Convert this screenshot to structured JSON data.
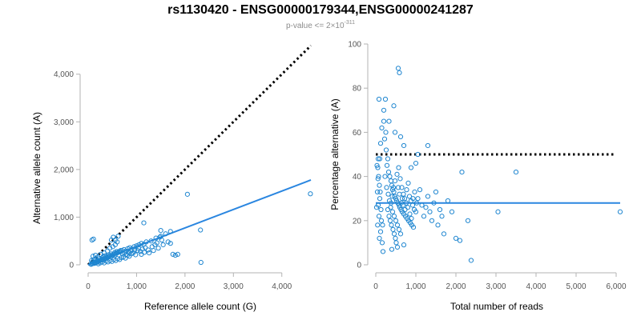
{
  "title": "rs1130420 - ENSG00000179344,ENSG00000241287",
  "subtitle": {
    "prefix": "p-value <= 2",
    "times": "×",
    "base": "10",
    "exponent": "-311"
  },
  "colors": {
    "points": "#1f86d0",
    "fit_line": "#2a86e0",
    "reference_line": "#000000",
    "axis": "#b3b3b3"
  },
  "chart_data": [
    {
      "type": "scatter",
      "xlabel": "Reference allele count (G)",
      "ylabel": "Alternative allele count (A)",
      "xlim": [
        0,
        4600
      ],
      "ylim": [
        0,
        4600
      ],
      "x_ticks": [
        {
          "value": 0,
          "label": "0"
        },
        {
          "value": 1000,
          "label": "1,000"
        },
        {
          "value": 2000,
          "label": "2,000"
        },
        {
          "value": 3000,
          "label": "3,000"
        },
        {
          "value": 4000,
          "label": "4,000"
        }
      ],
      "y_ticks": [
        {
          "value": 0,
          "label": "0"
        },
        {
          "value": 1000,
          "label": "1,000"
        },
        {
          "value": 2000,
          "label": "2,000"
        },
        {
          "value": 3000,
          "label": "3,000"
        },
        {
          "value": 4000,
          "label": "4,000"
        }
      ],
      "grid": false,
      "reference_line": {
        "style": "dotted",
        "x": [
          0,
          4600
        ],
        "y": [
          0,
          4600
        ]
      },
      "fit_line": {
        "style": "solid",
        "x": [
          0,
          4600
        ],
        "y": [
          0,
          1780
        ]
      },
      "points": [
        {
          "x": 60,
          "y": 10
        },
        {
          "x": 80,
          "y": 20
        },
        {
          "x": 100,
          "y": 30
        },
        {
          "x": 120,
          "y": 40
        },
        {
          "x": 140,
          "y": 50
        },
        {
          "x": 160,
          "y": 40
        },
        {
          "x": 180,
          "y": 70
        },
        {
          "x": 200,
          "y": 60
        },
        {
          "x": 220,
          "y": 80
        },
        {
          "x": 240,
          "y": 90
        },
        {
          "x": 260,
          "y": 100
        },
        {
          "x": 280,
          "y": 110
        },
        {
          "x": 300,
          "y": 120
        },
        {
          "x": 320,
          "y": 100
        },
        {
          "x": 340,
          "y": 140
        },
        {
          "x": 360,
          "y": 130
        },
        {
          "x": 380,
          "y": 150
        },
        {
          "x": 400,
          "y": 170
        },
        {
          "x": 420,
          "y": 160
        },
        {
          "x": 440,
          "y": 180
        },
        {
          "x": 460,
          "y": 190
        },
        {
          "x": 480,
          "y": 170
        },
        {
          "x": 500,
          "y": 200
        },
        {
          "x": 520,
          "y": 220
        },
        {
          "x": 540,
          "y": 230
        },
        {
          "x": 560,
          "y": 210
        },
        {
          "x": 580,
          "y": 240
        },
        {
          "x": 600,
          "y": 250
        },
        {
          "x": 620,
          "y": 260
        },
        {
          "x": 640,
          "y": 280
        },
        {
          "x": 660,
          "y": 270
        },
        {
          "x": 700,
          "y": 300
        },
        {
          "x": 740,
          "y": 320
        },
        {
          "x": 780,
          "y": 290
        },
        {
          "x": 820,
          "y": 340
        },
        {
          "x": 860,
          "y": 360
        },
        {
          "x": 900,
          "y": 330
        },
        {
          "x": 950,
          "y": 380
        },
        {
          "x": 1000,
          "y": 400
        },
        {
          "x": 1050,
          "y": 420
        },
        {
          "x": 1100,
          "y": 450
        },
        {
          "x": 1150,
          "y": 430
        },
        {
          "x": 1200,
          "y": 480
        },
        {
          "x": 1300,
          "y": 500
        },
        {
          "x": 1400,
          "y": 560
        },
        {
          "x": 1500,
          "y": 600
        },
        {
          "x": 1600,
          "y": 650
        },
        {
          "x": 90,
          "y": 60
        },
        {
          "x": 130,
          "y": 30
        },
        {
          "x": 170,
          "y": 120
        },
        {
          "x": 210,
          "y": 20
        },
        {
          "x": 250,
          "y": 40
        },
        {
          "x": 290,
          "y": 60
        },
        {
          "x": 330,
          "y": 40
        },
        {
          "x": 370,
          "y": 80
        },
        {
          "x": 410,
          "y": 60
        },
        {
          "x": 450,
          "y": 90
        },
        {
          "x": 490,
          "y": 70
        },
        {
          "x": 530,
          "y": 110
        },
        {
          "x": 570,
          "y": 90
        },
        {
          "x": 610,
          "y": 130
        },
        {
          "x": 650,
          "y": 110
        },
        {
          "x": 690,
          "y": 150
        },
        {
          "x": 730,
          "y": 170
        },
        {
          "x": 770,
          "y": 140
        },
        {
          "x": 810,
          "y": 200
        },
        {
          "x": 850,
          "y": 180
        },
        {
          "x": 890,
          "y": 230
        },
        {
          "x": 930,
          "y": 250
        },
        {
          "x": 980,
          "y": 210
        },
        {
          "x": 1020,
          "y": 300
        },
        {
          "x": 1080,
          "y": 280
        },
        {
          "x": 1120,
          "y": 330
        },
        {
          "x": 1180,
          "y": 360
        },
        {
          "x": 1240,
          "y": 310
        },
        {
          "x": 1320,
          "y": 380
        },
        {
          "x": 1380,
          "y": 420
        },
        {
          "x": 1450,
          "y": 350
        },
        {
          "x": 1550,
          "y": 420
        },
        {
          "x": 1650,
          "y": 480
        },
        {
          "x": 1700,
          "y": 450
        },
        {
          "x": 1750,
          "y": 220
        },
        {
          "x": 1800,
          "y": 200
        },
        {
          "x": 1850,
          "y": 220
        },
        {
          "x": 100,
          "y": 180
        },
        {
          "x": 150,
          "y": 200
        },
        {
          "x": 200,
          "y": 160
        },
        {
          "x": 260,
          "y": 220
        },
        {
          "x": 330,
          "y": 250
        },
        {
          "x": 400,
          "y": 290
        },
        {
          "x": 450,
          "y": 350
        },
        {
          "x": 510,
          "y": 380
        },
        {
          "x": 560,
          "y": 420
        },
        {
          "x": 600,
          "y": 480
        },
        {
          "x": 620,
          "y": 600
        },
        {
          "x": 520,
          "y": 580
        },
        {
          "x": 480,
          "y": 520
        },
        {
          "x": 80,
          "y": 520
        },
        {
          "x": 110,
          "y": 540
        },
        {
          "x": 560,
          "y": 520
        },
        {
          "x": 1150,
          "y": 880
        },
        {
          "x": 1500,
          "y": 720
        },
        {
          "x": 1700,
          "y": 700
        },
        {
          "x": 1480,
          "y": 580
        },
        {
          "x": 2050,
          "y": 1480
        },
        {
          "x": 2320,
          "y": 730
        },
        {
          "x": 2330,
          "y": 50
        },
        {
          "x": 4590,
          "y": 1490
        },
        {
          "x": 70,
          "y": 90
        },
        {
          "x": 120,
          "y": 110
        },
        {
          "x": 190,
          "y": 90
        },
        {
          "x": 230,
          "y": 130
        },
        {
          "x": 310,
          "y": 170
        },
        {
          "x": 350,
          "y": 190
        },
        {
          "x": 430,
          "y": 210
        },
        {
          "x": 470,
          "y": 230
        },
        {
          "x": 550,
          "y": 260
        },
        {
          "x": 590,
          "y": 280
        },
        {
          "x": 670,
          "y": 300
        },
        {
          "x": 710,
          "y": 230
        },
        {
          "x": 750,
          "y": 260
        },
        {
          "x": 790,
          "y": 220
        },
        {
          "x": 840,
          "y": 250
        },
        {
          "x": 880,
          "y": 290
        },
        {
          "x": 960,
          "y": 310
        },
        {
          "x": 1040,
          "y": 350
        },
        {
          "x": 1100,
          "y": 220
        },
        {
          "x": 1160,
          "y": 260
        },
        {
          "x": 1260,
          "y": 250
        },
        {
          "x": 1350,
          "y": 300
        },
        {
          "x": 1420,
          "y": 460
        },
        {
          "x": 1520,
          "y": 520
        }
      ]
    },
    {
      "type": "scatter",
      "xlabel": "Total number of reads",
      "ylabel": "Percentage alternative (A)",
      "xlim": [
        0,
        6100
      ],
      "ylim": [
        0,
        100
      ],
      "x_ticks": [
        {
          "value": 0,
          "label": "0"
        },
        {
          "value": 1000,
          "label": "1,000"
        },
        {
          "value": 2000,
          "label": "2,000"
        },
        {
          "value": 3000,
          "label": "3,000"
        },
        {
          "value": 4000,
          "label": "4,000"
        },
        {
          "value": 5000,
          "label": "5,000"
        },
        {
          "value": 6000,
          "label": "6,000"
        }
      ],
      "y_ticks": [
        {
          "value": 0,
          "label": "0"
        },
        {
          "value": 20,
          "label": "20"
        },
        {
          "value": 40,
          "label": "40"
        },
        {
          "value": 60,
          "label": "60"
        },
        {
          "value": 80,
          "label": "80"
        },
        {
          "value": 100,
          "label": "100"
        }
      ],
      "grid": false,
      "reference_line": {
        "style": "dotted",
        "x": [
          0,
          6000
        ],
        "y": [
          50,
          50
        ]
      },
      "fit_line": {
        "style": "solid",
        "x": [
          0,
          6100
        ],
        "y": [
          28,
          28
        ]
      },
      "points": [
        {
          "x": 80,
          "y": 75
        },
        {
          "x": 150,
          "y": 62
        },
        {
          "x": 120,
          "y": 55
        },
        {
          "x": 60,
          "y": 48
        },
        {
          "x": 50,
          "y": 44
        },
        {
          "x": 70,
          "y": 40
        },
        {
          "x": 90,
          "y": 36
        },
        {
          "x": 110,
          "y": 33
        },
        {
          "x": 100,
          "y": 30
        },
        {
          "x": 60,
          "y": 27
        },
        {
          "x": 130,
          "y": 25
        },
        {
          "x": 80,
          "y": 22
        },
        {
          "x": 140,
          "y": 20
        },
        {
          "x": 170,
          "y": 18
        },
        {
          "x": 120,
          "y": 15
        },
        {
          "x": 90,
          "y": 12
        },
        {
          "x": 160,
          "y": 10
        },
        {
          "x": 200,
          "y": 65
        },
        {
          "x": 250,
          "y": 60
        },
        {
          "x": 220,
          "y": 57
        },
        {
          "x": 260,
          "y": 52
        },
        {
          "x": 300,
          "y": 48
        },
        {
          "x": 280,
          "y": 45
        },
        {
          "x": 320,
          "y": 42
        },
        {
          "x": 350,
          "y": 40
        },
        {
          "x": 380,
          "y": 38
        },
        {
          "x": 400,
          "y": 36
        },
        {
          "x": 420,
          "y": 34
        },
        {
          "x": 450,
          "y": 33
        },
        {
          "x": 470,
          "y": 31
        },
        {
          "x": 500,
          "y": 30
        },
        {
          "x": 520,
          "y": 29
        },
        {
          "x": 550,
          "y": 28
        },
        {
          "x": 580,
          "y": 27
        },
        {
          "x": 600,
          "y": 26
        },
        {
          "x": 630,
          "y": 25
        },
        {
          "x": 660,
          "y": 24
        },
        {
          "x": 700,
          "y": 23
        },
        {
          "x": 740,
          "y": 22
        },
        {
          "x": 780,
          "y": 21
        },
        {
          "x": 820,
          "y": 20
        },
        {
          "x": 860,
          "y": 19
        },
        {
          "x": 900,
          "y": 18
        },
        {
          "x": 940,
          "y": 17
        },
        {
          "x": 300,
          "y": 25
        },
        {
          "x": 330,
          "y": 22
        },
        {
          "x": 360,
          "y": 20
        },
        {
          "x": 390,
          "y": 18
        },
        {
          "x": 430,
          "y": 16
        },
        {
          "x": 460,
          "y": 14
        },
        {
          "x": 490,
          "y": 12
        },
        {
          "x": 510,
          "y": 10
        },
        {
          "x": 540,
          "y": 8
        },
        {
          "x": 380,
          "y": 28
        },
        {
          "x": 410,
          "y": 31
        },
        {
          "x": 440,
          "y": 35
        },
        {
          "x": 480,
          "y": 38
        },
        {
          "x": 530,
          "y": 41
        },
        {
          "x": 570,
          "y": 44
        },
        {
          "x": 610,
          "y": 39
        },
        {
          "x": 650,
          "y": 35
        },
        {
          "x": 690,
          "y": 32
        },
        {
          "x": 720,
          "y": 30
        },
        {
          "x": 760,
          "y": 28
        },
        {
          "x": 800,
          "y": 26
        },
        {
          "x": 840,
          "y": 31
        },
        {
          "x": 880,
          "y": 29
        },
        {
          "x": 920,
          "y": 27
        },
        {
          "x": 960,
          "y": 25
        },
        {
          "x": 1000,
          "y": 24
        },
        {
          "x": 1050,
          "y": 30
        },
        {
          "x": 1100,
          "y": 34
        },
        {
          "x": 1150,
          "y": 27
        },
        {
          "x": 1200,
          "y": 22
        },
        {
          "x": 1250,
          "y": 26
        },
        {
          "x": 1300,
          "y": 31
        },
        {
          "x": 1350,
          "y": 24
        },
        {
          "x": 1400,
          "y": 20
        },
        {
          "x": 1450,
          "y": 28
        },
        {
          "x": 1500,
          "y": 33
        },
        {
          "x": 1550,
          "y": 18
        },
        {
          "x": 1600,
          "y": 25
        },
        {
          "x": 1650,
          "y": 22
        },
        {
          "x": 1700,
          "y": 14
        },
        {
          "x": 1800,
          "y": 29
        },
        {
          "x": 1900,
          "y": 24
        },
        {
          "x": 2000,
          "y": 12
        },
        {
          "x": 2100,
          "y": 11
        },
        {
          "x": 2150,
          "y": 42
        },
        {
          "x": 2300,
          "y": 20
        },
        {
          "x": 2380,
          "y": 2
        },
        {
          "x": 3050,
          "y": 24
        },
        {
          "x": 3500,
          "y": 42
        },
        {
          "x": 6100,
          "y": 24
        },
        {
          "x": 560,
          "y": 89
        },
        {
          "x": 590,
          "y": 87
        },
        {
          "x": 240,
          "y": 75
        },
        {
          "x": 450,
          "y": 72
        },
        {
          "x": 200,
          "y": 70
        },
        {
          "x": 330,
          "y": 65
        },
        {
          "x": 480,
          "y": 60
        },
        {
          "x": 620,
          "y": 58
        },
        {
          "x": 700,
          "y": 54
        },
        {
          "x": 1050,
          "y": 50
        },
        {
          "x": 1300,
          "y": 54
        },
        {
          "x": 1000,
          "y": 46
        },
        {
          "x": 880,
          "y": 44
        },
        {
          "x": 180,
          "y": 6
        },
        {
          "x": 400,
          "y": 7
        },
        {
          "x": 700,
          "y": 9
        },
        {
          "x": 30,
          "y": 45
        },
        {
          "x": 40,
          "y": 33
        },
        {
          "x": 20,
          "y": 26
        },
        {
          "x": 45,
          "y": 18
        },
        {
          "x": 55,
          "y": 39
        },
        {
          "x": 100,
          "y": 48
        },
        {
          "x": 230,
          "y": 40
        },
        {
          "x": 270,
          "y": 35
        },
        {
          "x": 310,
          "y": 32
        },
        {
          "x": 340,
          "y": 29
        },
        {
          "x": 370,
          "y": 26
        },
        {
          "x": 420,
          "y": 24
        },
        {
          "x": 460,
          "y": 22
        },
        {
          "x": 500,
          "y": 20
        },
        {
          "x": 540,
          "y": 18
        },
        {
          "x": 580,
          "y": 16
        },
        {
          "x": 620,
          "y": 14
        },
        {
          "x": 660,
          "y": 30
        },
        {
          "x": 560,
          "y": 35
        },
        {
          "x": 590,
          "y": 32
        },
        {
          "x": 640,
          "y": 28
        },
        {
          "x": 680,
          "y": 27
        },
        {
          "x": 730,
          "y": 25
        },
        {
          "x": 770,
          "y": 34
        },
        {
          "x": 810,
          "y": 37
        },
        {
          "x": 850,
          "y": 23
        },
        {
          "x": 890,
          "y": 21
        },
        {
          "x": 930,
          "y": 30
        },
        {
          "x": 970,
          "y": 33
        },
        {
          "x": 1020,
          "y": 28
        }
      ]
    }
  ]
}
